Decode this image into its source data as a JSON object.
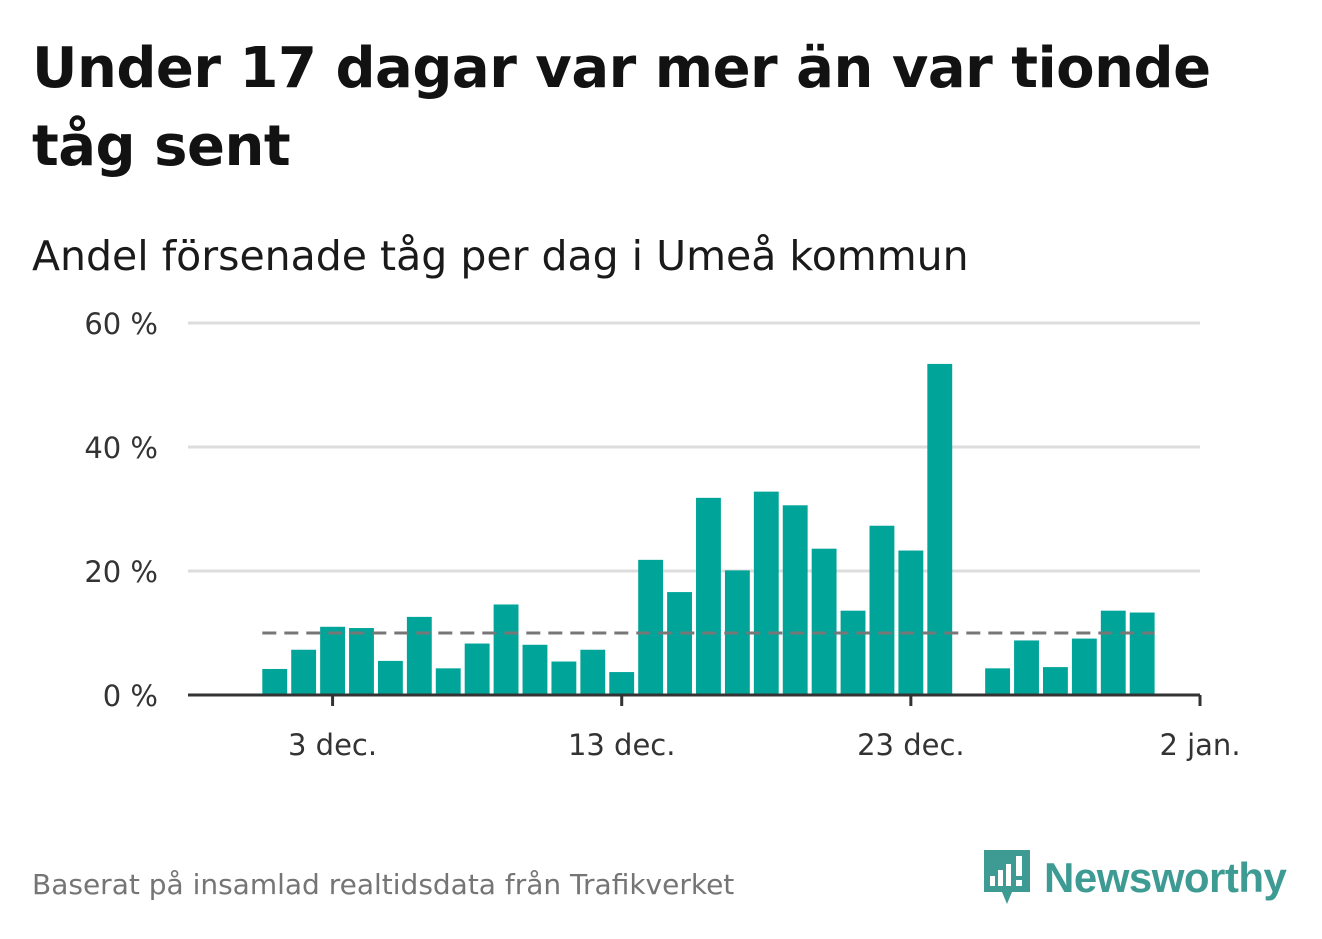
{
  "title": "Under 17 dagar var mer än var tionde tåg sent",
  "subtitle": "Andel försenade tåg per dag i Umeå kommun",
  "source": "Baserat på insamlad realtidsdata från Trafikverket",
  "logo": {
    "text": "Newsworthy",
    "icon": "newsworthy-logo-icon",
    "color": "#3d9b94"
  },
  "chart_data": {
    "type": "bar",
    "unit": "%",
    "bar_color": "#00a499",
    "reference_line": {
      "value": 10,
      "style": "dashed",
      "color": "#777777"
    },
    "ylim": [
      0,
      60
    ],
    "y_ticks": [
      {
        "value": 0,
        "label": "0 %"
      },
      {
        "value": 20,
        "label": "20 %"
      },
      {
        "value": 40,
        "label": "40 %"
      },
      {
        "value": 60,
        "label": "60 %"
      }
    ],
    "x_ticks": [
      {
        "date": "2023-12-03",
        "label": "3 dec."
      },
      {
        "date": "2023-12-13",
        "label": "13 dec."
      },
      {
        "date": "2023-12-23",
        "label": "23 dec."
      },
      {
        "date": "2024-01-02",
        "label": "2 jan."
      }
    ],
    "xlim": [
      "2023-11-28",
      "2024-01-02"
    ],
    "grid": true,
    "points": [
      {
        "date": "2023-12-01",
        "value": 4.2
      },
      {
        "date": "2023-12-02",
        "value": 7.3
      },
      {
        "date": "2023-12-03",
        "value": 11.0
      },
      {
        "date": "2023-12-04",
        "value": 10.8
      },
      {
        "date": "2023-12-05",
        "value": 5.5
      },
      {
        "date": "2023-12-06",
        "value": 12.6
      },
      {
        "date": "2023-12-07",
        "value": 4.3
      },
      {
        "date": "2023-12-08",
        "value": 8.3
      },
      {
        "date": "2023-12-09",
        "value": 14.6
      },
      {
        "date": "2023-12-10",
        "value": 8.1
      },
      {
        "date": "2023-12-11",
        "value": 5.4
      },
      {
        "date": "2023-12-12",
        "value": 7.3
      },
      {
        "date": "2023-12-13",
        "value": 3.7
      },
      {
        "date": "2023-12-14",
        "value": 21.8
      },
      {
        "date": "2023-12-15",
        "value": 16.6
      },
      {
        "date": "2023-12-16",
        "value": 31.8
      },
      {
        "date": "2023-12-17",
        "value": 20.1
      },
      {
        "date": "2023-12-18",
        "value": 32.8
      },
      {
        "date": "2023-12-19",
        "value": 30.6
      },
      {
        "date": "2023-12-20",
        "value": 23.6
      },
      {
        "date": "2023-12-21",
        "value": 13.6
      },
      {
        "date": "2023-12-22",
        "value": 27.3
      },
      {
        "date": "2023-12-23",
        "value": 23.3
      },
      {
        "date": "2023-12-24",
        "value": 53.4
      },
      {
        "date": "2023-12-26",
        "value": 4.3
      },
      {
        "date": "2023-12-27",
        "value": 8.8
      },
      {
        "date": "2023-12-28",
        "value": 4.5
      },
      {
        "date": "2023-12-29",
        "value": 9.1
      },
      {
        "date": "2023-12-30",
        "value": 13.6
      },
      {
        "date": "2023-12-31",
        "value": 13.3
      }
    ]
  }
}
